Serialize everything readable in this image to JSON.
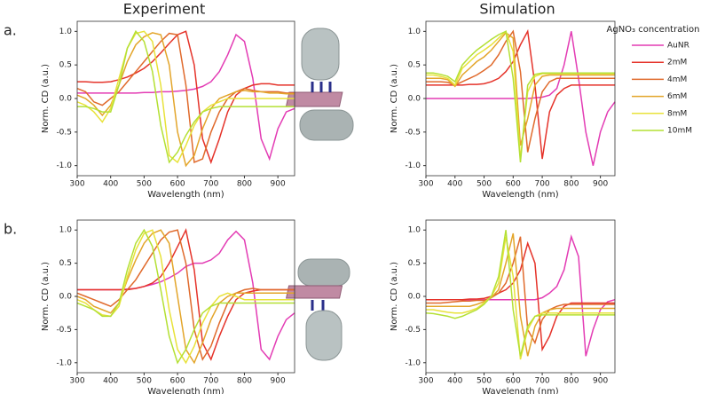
{
  "chart_data": [
    {
      "type": "line",
      "title": "Experiment",
      "panel_label": "a.",
      "x_label": "Wavelength (nm)",
      "y_label": "Norm. CD (a.u.)",
      "x": [
        300,
        325,
        350,
        375,
        400,
        425,
        450,
        475,
        500,
        525,
        550,
        575,
        600,
        625,
        650,
        675,
        700,
        725,
        750,
        775,
        800,
        825,
        850,
        875,
        900,
        925,
        950
      ],
      "xlim": [
        300,
        950
      ],
      "xticks": [
        300,
        400,
        500,
        600,
        700,
        800,
        900
      ],
      "ylim": [
        -1.15,
        1.15
      ],
      "yticks": [
        {
          "value": -1,
          "label": "-1.0"
        },
        -0.5,
        {
          "value": 0,
          "label": "0.0"
        },
        0.5,
        {
          "value": 1,
          "label": "1.0"
        }
      ],
      "series": [
        {
          "name": "AuNR",
          "color": "#e33cb4",
          "values": [
            0.08,
            0.08,
            0.08,
            0.08,
            0.08,
            0.08,
            0.08,
            0.08,
            0.09,
            0.09,
            0.1,
            0.1,
            0.11,
            0.12,
            0.14,
            0.18,
            0.25,
            0.4,
            0.65,
            0.95,
            0.85,
            0.3,
            -0.6,
            -0.9,
            -0.45,
            -0.2,
            -0.15
          ]
        },
        {
          "name": "2mM",
          "color": "#e5332a",
          "values": [
            0.25,
            0.25,
            0.24,
            0.24,
            0.25,
            0.28,
            0.32,
            0.38,
            0.45,
            0.55,
            0.68,
            0.82,
            0.95,
            1.0,
            0.5,
            -0.6,
            -0.95,
            -0.6,
            -0.2,
            0.05,
            0.15,
            0.2,
            0.22,
            0.22,
            0.2,
            0.2,
            0.2
          ]
        },
        {
          "name": "4mM",
          "color": "#e06a2c",
          "values": [
            0.15,
            0.1,
            -0.05,
            -0.1,
            0.0,
            0.1,
            0.25,
            0.4,
            0.55,
            0.7,
            0.85,
            0.97,
            0.95,
            0.2,
            -0.95,
            -0.9,
            -0.5,
            -0.2,
            0.0,
            0.1,
            0.15,
            0.12,
            0.1,
            0.1,
            0.1,
            0.08,
            0.08
          ]
        },
        {
          "name": "6mM",
          "color": "#e3a52a",
          "values": [
            0.05,
            0.0,
            -0.1,
            -0.25,
            -0.1,
            0.2,
            0.55,
            0.8,
            0.92,
            0.98,
            0.95,
            0.5,
            -0.5,
            -1.0,
            -0.85,
            -0.45,
            -0.15,
            0.0,
            0.05,
            0.1,
            0.12,
            0.1,
            0.1,
            0.08,
            0.08,
            0.07,
            0.07
          ]
        },
        {
          "name": "8mM",
          "color": "#e8e23a",
          "values": [
            -0.05,
            -0.1,
            -0.2,
            -0.35,
            -0.15,
            0.3,
            0.75,
            0.97,
            1.0,
            0.85,
            0.2,
            -0.85,
            -0.95,
            -0.7,
            -0.4,
            -0.2,
            -0.1,
            -0.05,
            0.0,
            0.0,
            0.0,
            0.0,
            0.0,
            0.0,
            0.0,
            0.0,
            0.0
          ]
        },
        {
          "name": "10mM",
          "color": "#b4e034",
          "values": [
            -0.12,
            -0.12,
            -0.15,
            -0.2,
            -0.2,
            0.2,
            0.75,
            1.0,
            0.85,
            0.4,
            -0.4,
            -0.95,
            -0.8,
            -0.55,
            -0.35,
            -0.2,
            -0.15,
            -0.12,
            -0.12,
            -0.12,
            -0.12,
            -0.12,
            -0.12,
            -0.12,
            -0.12,
            -0.12,
            -0.12
          ]
        }
      ]
    },
    {
      "type": "line",
      "title": "Simulation",
      "legend_title": "AgNO₃ concentration",
      "x_label": "Wavelength (nm)",
      "y_label": "Norm. CD (a.u.)",
      "x": [
        300,
        325,
        350,
        375,
        400,
        425,
        450,
        475,
        500,
        525,
        550,
        575,
        600,
        625,
        650,
        675,
        700,
        725,
        750,
        775,
        800,
        825,
        850,
        875,
        900,
        925,
        950
      ],
      "xlim": [
        300,
        950
      ],
      "xticks": [
        300,
        400,
        500,
        600,
        700,
        800,
        900
      ],
      "ylim": [
        -1.15,
        1.15
      ],
      "yticks": [
        {
          "value": -1,
          "label": "-1.0"
        },
        -0.5,
        {
          "value": 0,
          "label": "0.0"
        },
        0.5,
        {
          "value": 1,
          "label": "1.0"
        }
      ],
      "series": [
        {
          "name": "AuNR",
          "color": "#e33cb4",
          "values": [
            0,
            0,
            0,
            0,
            0,
            0,
            0,
            0,
            0,
            0,
            0,
            0,
            0,
            0,
            0,
            0.01,
            0.02,
            0.05,
            0.15,
            0.5,
            1.0,
            0.3,
            -0.5,
            -1.0,
            -0.5,
            -0.2,
            -0.05
          ]
        },
        {
          "name": "2mM",
          "color": "#e5332a",
          "values": [
            0.2,
            0.2,
            0.2,
            0.2,
            0.2,
            0.2,
            0.21,
            0.21,
            0.22,
            0.25,
            0.3,
            0.4,
            0.55,
            0.8,
            1.0,
            0.2,
            -0.9,
            -0.2,
            0.05,
            0.15,
            0.2,
            0.2,
            0.2,
            0.2,
            0.2,
            0.2,
            0.2
          ]
        },
        {
          "name": "4mM",
          "color": "#e06a2c",
          "values": [
            0.25,
            0.25,
            0.25,
            0.24,
            0.2,
            0.25,
            0.3,
            0.35,
            0.42,
            0.5,
            0.65,
            0.85,
            1.0,
            0.4,
            -0.8,
            -0.3,
            0.1,
            0.25,
            0.3,
            0.3,
            0.3,
            0.3,
            0.3,
            0.3,
            0.3,
            0.3,
            0.3
          ]
        },
        {
          "name": "6mM",
          "color": "#e3a52a",
          "values": [
            0.3,
            0.3,
            0.3,
            0.28,
            0.18,
            0.35,
            0.45,
            0.55,
            0.62,
            0.72,
            0.85,
            0.98,
            0.9,
            -0.7,
            -0.3,
            0.2,
            0.33,
            0.35,
            0.35,
            0.35,
            0.35,
            0.35,
            0.35,
            0.35,
            0.35,
            0.35,
            0.35
          ]
        },
        {
          "name": "8mM",
          "color": "#e8e23a",
          "values": [
            0.35,
            0.35,
            0.33,
            0.3,
            0.2,
            0.45,
            0.55,
            0.65,
            0.72,
            0.8,
            0.9,
            1.0,
            0.7,
            -0.9,
            0.1,
            0.33,
            0.37,
            0.37,
            0.37,
            0.37,
            0.37,
            0.37,
            0.37,
            0.37,
            0.37,
            0.37,
            0.37
          ]
        },
        {
          "name": "10mM",
          "color": "#b4e034",
          "values": [
            0.38,
            0.38,
            0.36,
            0.33,
            0.25,
            0.5,
            0.62,
            0.72,
            0.8,
            0.88,
            0.95,
            1.0,
            0.3,
            -0.95,
            0.2,
            0.36,
            0.38,
            0.38,
            0.38,
            0.38,
            0.38,
            0.38,
            0.38,
            0.38,
            0.38,
            0.38,
            0.38
          ]
        }
      ]
    },
    {
      "type": "line",
      "panel_label": "b.",
      "x_label": "Wavelength (nm)",
      "y_label": "Norm. CD (a.u.)",
      "x": [
        300,
        325,
        350,
        375,
        400,
        425,
        450,
        475,
        500,
        525,
        550,
        575,
        600,
        625,
        650,
        675,
        700,
        725,
        750,
        775,
        800,
        825,
        850,
        875,
        900,
        925,
        950
      ],
      "xlim": [
        300,
        950
      ],
      "xticks": [
        300,
        400,
        500,
        600,
        700,
        800,
        900
      ],
      "ylim": [
        -1.15,
        1.15
      ],
      "yticks": [
        {
          "value": -1,
          "label": "-1.0"
        },
        -0.5,
        {
          "value": 0,
          "label": "0.0"
        },
        0.5,
        {
          "value": 1,
          "label": "1.0"
        }
      ],
      "series": [
        {
          "name": "AuNR",
          "color": "#e33cb4",
          "values": [
            0.1,
            0.1,
            0.1,
            0.1,
            0.1,
            0.1,
            0.11,
            0.12,
            0.15,
            0.18,
            0.22,
            0.28,
            0.35,
            0.45,
            0.5,
            0.5,
            0.55,
            0.65,
            0.85,
            0.98,
            0.85,
            0.2,
            -0.8,
            -0.95,
            -0.6,
            -0.35,
            -0.25
          ]
        },
        {
          "name": "2mM",
          "color": "#e5332a",
          "values": [
            0.1,
            0.1,
            0.1,
            0.1,
            0.1,
            0.1,
            0.1,
            0.12,
            0.15,
            0.2,
            0.3,
            0.5,
            0.75,
            1.0,
            0.4,
            -0.7,
            -0.95,
            -0.6,
            -0.3,
            -0.05,
            0.05,
            0.08,
            0.1,
            0.1,
            0.1,
            0.1,
            0.1
          ]
        },
        {
          "name": "4mM",
          "color": "#e06a2c",
          "values": [
            0.05,
            0.0,
            -0.05,
            -0.1,
            -0.15,
            -0.05,
            0.1,
            0.25,
            0.45,
            0.65,
            0.85,
            0.97,
            1.0,
            0.5,
            -0.5,
            -0.95,
            -0.75,
            -0.4,
            -0.1,
            0.05,
            0.1,
            0.12,
            0.1,
            0.1,
            0.1,
            0.1,
            0.1
          ]
        },
        {
          "name": "6mM",
          "color": "#e3a52a",
          "values": [
            0.0,
            -0.05,
            -0.15,
            -0.2,
            -0.25,
            -0.1,
            0.25,
            0.55,
            0.8,
            0.95,
            1.0,
            0.8,
            0.0,
            -0.8,
            -1.0,
            -0.7,
            -0.35,
            -0.1,
            0.0,
            0.05,
            0.05,
            0.05,
            0.05,
            0.05,
            0.05,
            0.05,
            0.05
          ]
        },
        {
          "name": "8mM",
          "color": "#e8e23a",
          "values": [
            -0.05,
            -0.1,
            -0.2,
            -0.28,
            -0.3,
            -0.15,
            0.3,
            0.7,
            0.95,
            1.0,
            0.6,
            -0.2,
            -0.8,
            -1.0,
            -0.75,
            -0.4,
            -0.15,
            0.0,
            0.05,
            0.0,
            -0.05,
            -0.05,
            -0.05,
            -0.05,
            -0.05,
            -0.05,
            -0.05
          ]
        },
        {
          "name": "10mM",
          "color": "#b4e034",
          "values": [
            -0.1,
            -0.15,
            -0.2,
            -0.3,
            -0.3,
            -0.1,
            0.4,
            0.8,
            1.0,
            0.75,
            0.1,
            -0.6,
            -1.0,
            -0.8,
            -0.5,
            -0.25,
            -0.15,
            -0.1,
            -0.1,
            -0.1,
            -0.1,
            -0.1,
            -0.1,
            -0.1,
            -0.1,
            -0.1,
            -0.1
          ]
        }
      ]
    },
    {
      "type": "line",
      "x_label": "Wavelength (nm)",
      "y_label": "Norm. CD (a.u.)",
      "x": [
        300,
        325,
        350,
        375,
        400,
        425,
        450,
        475,
        500,
        525,
        550,
        575,
        600,
        625,
        650,
        675,
        700,
        725,
        750,
        775,
        800,
        825,
        850,
        875,
        900,
        925,
        950
      ],
      "xlim": [
        300,
        950
      ],
      "xticks": [
        300,
        400,
        500,
        600,
        700,
        800,
        900
      ],
      "ylim": [
        -1.15,
        1.15
      ],
      "yticks": [
        {
          "value": -1,
          "label": "-1.0"
        },
        -0.5,
        {
          "value": 0,
          "label": "0.0"
        },
        0.5,
        {
          "value": 1,
          "label": "1.0"
        }
      ],
      "series": [
        {
          "name": "AuNR",
          "color": "#e33cb4",
          "values": [
            -0.05,
            -0.05,
            -0.05,
            -0.05,
            -0.05,
            -0.05,
            -0.05,
            -0.05,
            -0.05,
            -0.05,
            -0.05,
            -0.05,
            -0.05,
            -0.05,
            -0.05,
            -0.05,
            -0.02,
            0.05,
            0.15,
            0.4,
            0.9,
            0.6,
            -0.9,
            -0.5,
            -0.2,
            -0.08,
            -0.05
          ]
        },
        {
          "name": "2mM",
          "color": "#e5332a",
          "values": [
            -0.05,
            -0.05,
            -0.05,
            -0.05,
            -0.05,
            -0.05,
            -0.04,
            -0.04,
            -0.03,
            0.0,
            0.05,
            0.1,
            0.2,
            0.4,
            0.8,
            0.5,
            -0.8,
            -0.6,
            -0.3,
            -0.15,
            -0.1,
            -0.1,
            -0.1,
            -0.1,
            -0.1,
            -0.1,
            -0.1
          ]
        },
        {
          "name": "4mM",
          "color": "#e06a2c",
          "values": [
            -0.1,
            -0.1,
            -0.1,
            -0.09,
            -0.08,
            -0.07,
            -0.07,
            -0.06,
            -0.06,
            -0.02,
            0.05,
            0.2,
            0.5,
            0.9,
            -0.5,
            -0.7,
            -0.35,
            -0.2,
            -0.15,
            -0.12,
            -0.12,
            -0.12,
            -0.12,
            -0.12,
            -0.12,
            -0.12,
            -0.12
          ]
        },
        {
          "name": "6mM",
          "color": "#e3a52a",
          "values": [
            -0.15,
            -0.15,
            -0.15,
            -0.15,
            -0.15,
            -0.15,
            -0.15,
            -0.12,
            -0.08,
            -0.02,
            0.1,
            0.5,
            0.95,
            -0.3,
            -0.9,
            -0.45,
            -0.25,
            -0.2,
            -0.18,
            -0.18,
            -0.18,
            -0.18,
            -0.18,
            -0.18,
            -0.18,
            -0.18,
            -0.18
          ]
        },
        {
          "name": "8mM",
          "color": "#e8e23a",
          "values": [
            -0.2,
            -0.2,
            -0.22,
            -0.24,
            -0.25,
            -0.25,
            -0.22,
            -0.18,
            -0.1,
            0.0,
            0.2,
            0.9,
            0.3,
            -0.95,
            -0.5,
            -0.3,
            -0.25,
            -0.25,
            -0.25,
            -0.25,
            -0.25,
            -0.25,
            -0.25,
            -0.25,
            -0.25,
            -0.25,
            -0.25
          ]
        },
        {
          "name": "10mM",
          "color": "#b4e034",
          "values": [
            -0.25,
            -0.26,
            -0.28,
            -0.3,
            -0.33,
            -0.3,
            -0.25,
            -0.2,
            -0.12,
            0.0,
            0.3,
            1.0,
            -0.2,
            -0.9,
            -0.45,
            -0.3,
            -0.28,
            -0.28,
            -0.28,
            -0.28,
            -0.28,
            -0.28,
            -0.28,
            -0.28,
            -0.28,
            -0.28,
            -0.28
          ]
        }
      ]
    }
  ]
}
